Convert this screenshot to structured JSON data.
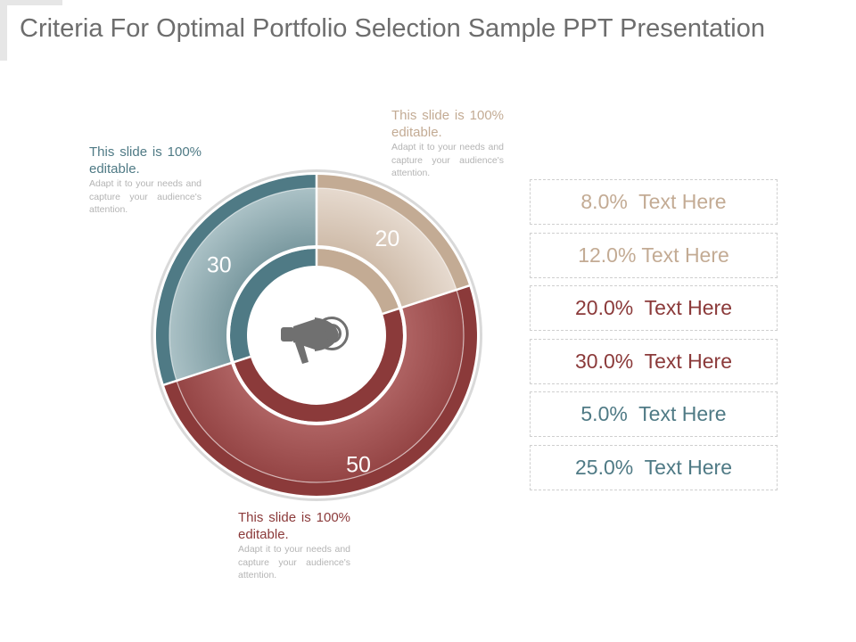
{
  "title": "Criteria For Optimal Portfolio Selection Sample PPT Presentation",
  "colors": {
    "tan": "#c3ab94",
    "teal": "#4f7a85",
    "red": "#8b3a3a",
    "icon": "#6f6f6f"
  },
  "center_icon": "megaphone-icon",
  "segments": [
    {
      "label": "20",
      "value": 20,
      "color": "tan"
    },
    {
      "label": "50",
      "value": 50,
      "color": "red"
    },
    {
      "label": "30",
      "value": 30,
      "color": "teal"
    }
  ],
  "notes": {
    "top_right": {
      "head": "This slide is 100% editable.",
      "body": "Adapt it to your needs and capture your audience's attention."
    },
    "top_left": {
      "head": "This slide is 100% editable.",
      "body": "Adapt it to your needs and capture your audience's attention."
    },
    "bottom": {
      "head": "This slide is 100% editable.",
      "body": "Adapt it to your needs and capture your audience's attention."
    }
  },
  "legend": [
    {
      "text": "8.0%  Text Here",
      "color": "tan"
    },
    {
      "text": "12.0% Text Here",
      "color": "tan"
    },
    {
      "text": "20.0%  Text Here",
      "color": "red"
    },
    {
      "text": "30.0%  Text Here",
      "color": "red"
    },
    {
      "text": "5.0%  Text Here",
      "color": "teal"
    },
    {
      "text": "25.0%  Text Here",
      "color": "teal"
    }
  ]
}
